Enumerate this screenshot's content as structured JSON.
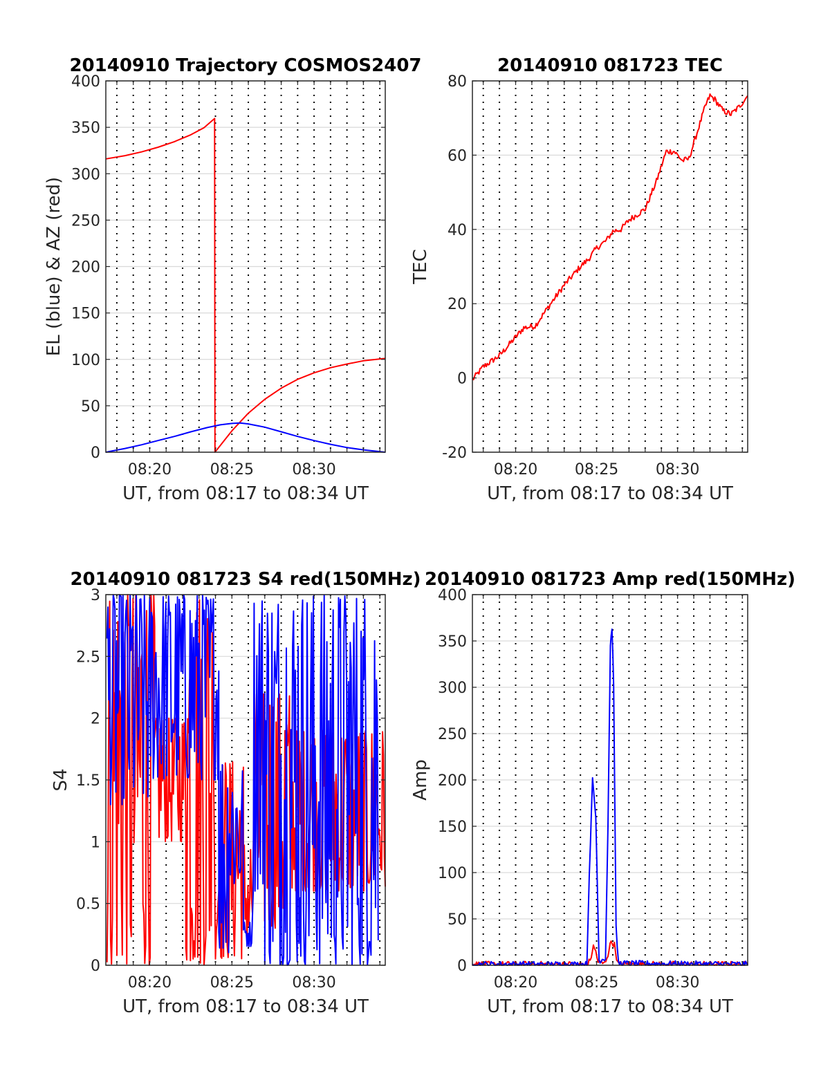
{
  "chart_data": [
    {
      "id": "traj",
      "type": "line",
      "title": "20140910 Trajectory COSMOS2407",
      "xlabel": "UT, from 08:17 to 08:34 UT",
      "ylabel": "EL (blue) & AZ (red)",
      "xlim": [
        17.33,
        34.33
      ],
      "ylim": [
        0,
        400
      ],
      "yticks": [
        0,
        50,
        100,
        150,
        200,
        250,
        300,
        350,
        400
      ],
      "xticks": [
        20,
        25,
        30
      ],
      "xticklabels": [
        "08:20",
        "08:25",
        "08:30"
      ],
      "grid": true,
      "series": [
        {
          "color": "#ff0000",
          "shape": "smooth",
          "points": [
            [
              17.33,
              316
            ],
            [
              18.5,
              319.5
            ],
            [
              19.5,
              323.5
            ],
            [
              20.5,
              328.5
            ],
            [
              21.5,
              334.5
            ],
            [
              22.5,
              342
            ],
            [
              23.3,
              349.5
            ],
            [
              23.95,
              359.5
            ],
            [
              23.97,
              0
            ],
            [
              25,
              23
            ],
            [
              26,
              42
            ],
            [
              27,
              57
            ],
            [
              28,
              69
            ],
            [
              29,
              78.5
            ],
            [
              30,
              85.5
            ],
            [
              31,
              91
            ],
            [
              32,
              95
            ],
            [
              33,
              98.5
            ],
            [
              34.33,
              101
            ]
          ]
        },
        {
          "color": "#0000ff",
          "shape": "smooth",
          "points": [
            [
              17.33,
              0
            ],
            [
              18.5,
              4
            ],
            [
              19.5,
              8
            ],
            [
              20.5,
              12.5
            ],
            [
              21.5,
              17
            ],
            [
              22.5,
              22
            ],
            [
              23.5,
              26.5
            ],
            [
              24.3,
              29.5
            ],
            [
              25,
              31
            ],
            [
              25.5,
              31.5
            ],
            [
              26,
              30.5
            ],
            [
              27,
              27
            ],
            [
              28,
              22
            ],
            [
              29,
              17
            ],
            [
              30,
              12.5
            ],
            [
              31,
              8.5
            ],
            [
              32,
              5
            ],
            [
              33,
              2.5
            ],
            [
              34.33,
              0
            ]
          ]
        }
      ]
    },
    {
      "id": "tec",
      "type": "line",
      "title": "20140910 081723 TEC",
      "xlabel": "UT, from 08:17 to 08:34 UT",
      "ylabel": "TEC",
      "xlim": [
        17.33,
        34.33
      ],
      "ylim": [
        -20,
        80
      ],
      "yticks": [
        -20,
        0,
        20,
        40,
        60,
        80
      ],
      "xticks": [
        20,
        25,
        30
      ],
      "xticklabels": [
        "08:20",
        "08:25",
        "08:30"
      ],
      "grid": true,
      "series": [
        {
          "color": "#ff0000",
          "shape": "noisy",
          "points": [
            [
              17.33,
              -0.5
            ],
            [
              18,
              3
            ],
            [
              19,
              6
            ],
            [
              20,
              11
            ],
            [
              20.5,
              13.5
            ],
            [
              21.2,
              14
            ],
            [
              22,
              19
            ],
            [
              23,
              25
            ],
            [
              24,
              30
            ],
            [
              24.5,
              32
            ],
            [
              25,
              35
            ],
            [
              25.6,
              37
            ],
            [
              26,
              39.5
            ],
            [
              26.5,
              40
            ],
            [
              27,
              42.5
            ],
            [
              28,
              45.5
            ],
            [
              28.7,
              53
            ],
            [
              29.3,
              61
            ],
            [
              29.8,
              61
            ],
            [
              30.3,
              58.5
            ],
            [
              30.7,
              59
            ],
            [
              31.2,
              66
            ],
            [
              31.7,
              73
            ],
            [
              32,
              76
            ],
            [
              32.3,
              75
            ],
            [
              32.8,
              72
            ],
            [
              33.3,
              71
            ],
            [
              33.8,
              73
            ],
            [
              34.33,
              76
            ]
          ]
        }
      ]
    },
    {
      "id": "s4",
      "type": "line",
      "title": "20140910 081723 S4 red(150MHz)",
      "xlabel": "UT, from 08:17 to 08:34 UT",
      "ylabel": "S4",
      "xlim": [
        17.33,
        34.33
      ],
      "ylim": [
        0,
        3
      ],
      "yticks": [
        0,
        0.5,
        1,
        1.5,
        2,
        2.5,
        3
      ],
      "yticklabels": [
        "0",
        "0.5",
        "1",
        "1.5",
        "2",
        "2.5",
        "3"
      ],
      "xticks": [
        20,
        25,
        30
      ],
      "xticklabels": [
        "08:20",
        "08:25",
        "08:30"
      ],
      "grid": true,
      "series": [
        {
          "color": "#ff0000",
          "shape": "spiky",
          "segments": [
            {
              "x": [
                17.4,
                20.3
              ],
              "range": [
                0,
                3
              ]
            },
            {
              "x": [
                20.3,
                22.2
              ],
              "range": [
                1.0,
                2.0
              ]
            },
            {
              "x": [
                22.2,
                23.8
              ],
              "range": [
                0.0,
                3.0
              ]
            },
            {
              "x": [
                24.0,
                25.7
              ],
              "range": [
                0.05,
                1.65
              ]
            },
            {
              "x": [
                25.7,
                26.3
              ],
              "range": [
                0.15,
                1.0
              ]
            },
            {
              "x": [
                26.5,
                28.5
              ],
              "range": [
                0.3,
                2.2
              ]
            },
            {
              "x": [
                28.5,
                34.33
              ],
              "range": [
                0.6,
                1.9
              ]
            }
          ]
        },
        {
          "color": "#0000ff",
          "shape": "spiky",
          "segments": [
            {
              "x": [
                17.4,
                20.0
              ],
              "range": [
                1.3,
                3.0
              ]
            },
            {
              "x": [
                20.0,
                24.2
              ],
              "range": [
                1.5,
                3.0
              ]
            },
            {
              "x": [
                24.2,
                24.8
              ],
              "range": [
                0.1,
                1.7
              ]
            },
            {
              "x": [
                24.8,
                25.7
              ],
              "range": [
                0.6,
                1.6
              ]
            },
            {
              "x": [
                25.7,
                26.2
              ],
              "range": [
                0.15,
                0.35
              ]
            },
            {
              "x": [
                26.3,
                27.0
              ],
              "range": [
                0.6,
                3.0
              ]
            },
            {
              "x": [
                27.0,
                33.9
              ],
              "range": [
                0.0,
                3.0
              ]
            }
          ]
        }
      ]
    },
    {
      "id": "amp",
      "type": "line",
      "title": "20140910 081723 Amp red(150MHz)",
      "xlabel": "UT, from 08:17 to 08:34 UT",
      "ylabel": "Amp",
      "xlim": [
        17.33,
        34.33
      ],
      "ylim": [
        0,
        400
      ],
      "yticks": [
        0,
        50,
        100,
        150,
        200,
        250,
        300,
        350,
        400
      ],
      "xticks": [
        20,
        25,
        30
      ],
      "xticklabels": [
        "08:20",
        "08:25",
        "08:30"
      ],
      "grid": true,
      "series": [
        {
          "color": "#ff0000",
          "shape": "noisy",
          "points": [
            [
              17.33,
              1
            ],
            [
              24.4,
              1
            ],
            [
              24.6,
              5
            ],
            [
              24.8,
              20
            ],
            [
              24.95,
              15
            ],
            [
              25.1,
              3
            ],
            [
              25.5,
              2
            ],
            [
              25.7,
              12
            ],
            [
              25.9,
              26
            ],
            [
              26.1,
              22
            ],
            [
              26.3,
              2
            ],
            [
              26.5,
              1
            ],
            [
              34.33,
              1
            ]
          ]
        },
        {
          "color": "#0000ff",
          "shape": "noisy",
          "points": [
            [
              17.33,
              1
            ],
            [
              24.4,
              1
            ],
            [
              24.55,
              100
            ],
            [
              24.75,
              200
            ],
            [
              24.95,
              160
            ],
            [
              25.15,
              5
            ],
            [
              25.55,
              8
            ],
            [
              25.7,
              150
            ],
            [
              25.85,
              345
            ],
            [
              25.95,
              365
            ],
            [
              26.05,
              305
            ],
            [
              26.2,
              40
            ],
            [
              26.35,
              2
            ],
            [
              34.33,
              1
            ]
          ]
        }
      ]
    }
  ]
}
